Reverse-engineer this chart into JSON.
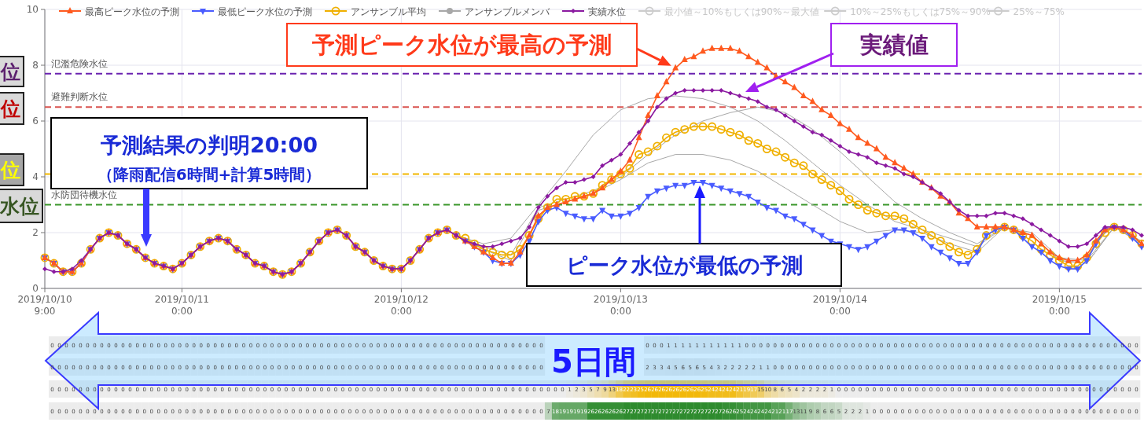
{
  "chart_data": [
    {
      "type": "line",
      "legend": "top",
      "grid": true,
      "x": [
        "2019-10-10T09:00",
        "2019-10-10T10:00",
        "2019-10-10T11:00",
        "2019-10-10T12:00",
        "2019-10-10T13:00",
        "2019-10-10T14:00",
        "2019-10-10T15:00",
        "2019-10-10T16:00",
        "2019-10-10T17:00",
        "2019-10-10T18:00",
        "2019-10-10T19:00",
        "2019-10-10T20:00",
        "2019-10-10T21:00",
        "2019-10-10T22:00",
        "2019-10-10T23:00",
        "2019-10-11T00:00",
        "2019-10-11T01:00",
        "2019-10-11T02:00",
        "2019-10-11T03:00",
        "2019-10-11T04:00",
        "2019-10-11T05:00",
        "2019-10-11T06:00",
        "2019-10-11T07:00",
        "2019-10-11T08:00",
        "2019-10-11T09:00",
        "2019-10-11T10:00",
        "2019-10-11T11:00",
        "2019-10-11T12:00",
        "2019-10-11T13:00",
        "2019-10-11T14:00",
        "2019-10-11T15:00",
        "2019-10-11T16:00",
        "2019-10-11T17:00",
        "2019-10-11T18:00",
        "2019-10-11T19:00",
        "2019-10-11T20:00",
        "2019-10-11T21:00",
        "2019-10-11T22:00",
        "2019-10-11T23:00",
        "2019-10-12T00:00",
        "2019-10-12T01:00",
        "2019-10-12T02:00",
        "2019-10-12T03:00",
        "2019-10-12T04:00",
        "2019-10-12T05:00",
        "2019-10-12T06:00",
        "2019-10-12T07:00",
        "2019-10-12T08:00",
        "2019-10-12T09:00",
        "2019-10-12T10:00",
        "2019-10-12T11:00",
        "2019-10-12T12:00",
        "2019-10-12T13:00",
        "2019-10-12T14:00",
        "2019-10-12T15:00",
        "2019-10-12T16:00",
        "2019-10-12T17:00",
        "2019-10-12T18:00",
        "2019-10-12T19:00",
        "2019-10-12T20:00",
        "2019-10-12T21:00",
        "2019-10-12T22:00",
        "2019-10-12T23:00",
        "2019-10-13T00:00",
        "2019-10-13T01:00",
        "2019-10-13T02:00",
        "2019-10-13T03:00",
        "2019-10-13T04:00",
        "2019-10-13T05:00",
        "2019-10-13T06:00",
        "2019-10-13T07:00",
        "2019-10-13T08:00",
        "2019-10-13T09:00",
        "2019-10-13T10:00",
        "2019-10-13T11:00",
        "2019-10-13T12:00",
        "2019-10-13T13:00",
        "2019-10-13T14:00",
        "2019-10-13T15:00",
        "2019-10-13T16:00",
        "2019-10-13T17:00",
        "2019-10-13T18:00",
        "2019-10-13T19:00",
        "2019-10-13T20:00",
        "2019-10-13T21:00",
        "2019-10-13T22:00",
        "2019-10-13T23:00",
        "2019-10-14T00:00",
        "2019-10-14T01:00",
        "2019-10-14T02:00",
        "2019-10-14T03:00",
        "2019-10-14T04:00",
        "2019-10-14T05:00",
        "2019-10-14T06:00",
        "2019-10-14T07:00",
        "2019-10-14T08:00",
        "2019-10-14T09:00",
        "2019-10-14T10:00",
        "2019-10-14T11:00",
        "2019-10-14T12:00",
        "2019-10-14T13:00",
        "2019-10-14T14:00",
        "2019-10-14T15:00",
        "2019-10-14T16:00",
        "2019-10-14T17:00",
        "2019-10-14T18:00",
        "2019-10-14T19:00",
        "2019-10-14T20:00",
        "2019-10-14T21:00",
        "2019-10-14T22:00",
        "2019-10-14T23:00",
        "2019-10-15T00:00",
        "2019-10-15T01:00",
        "2019-10-15T02:00",
        "2019-10-15T03:00",
        "2019-10-15T04:00",
        "2019-10-15T05:00",
        "2019-10-15T06:00",
        "2019-10-15T07:00",
        "2019-10-15T08:00",
        "2019-10-15T09:00"
      ],
      "xlim": [
        "2019-10-10T09:00",
        "2019-10-15T09:00"
      ],
      "ylim": [
        0,
        10
      ],
      "xticks": [
        {
          "value": "2019-10-10T09:00",
          "label": "2019/10/10 9:00"
        },
        {
          "value": "2019-10-11T00:00",
          "label": "2019/10/11 0:00"
        },
        {
          "value": "2019-10-12T00:00",
          "label": "2019/10/12 0:00"
        },
        {
          "value": "2019-10-13T00:00",
          "label": "2019/10/13 0:00"
        },
        {
          "value": "2019-10-14T00:00",
          "label": "2019/10/14 0:00"
        },
        {
          "value": "2019-10-15T00:00",
          "label": "2019/10/15 0:00"
        }
      ],
      "yticks": [
        0,
        2,
        4,
        6,
        8,
        10
      ],
      "ref_lines": [
        {
          "axis": "y",
          "value": 7.7,
          "label": "氾濫危険水位",
          "color": "#6a22b0",
          "line_style": "dashed"
        },
        {
          "axis": "y",
          "value": 6.5,
          "label": "避難判断水位",
          "color": "#d9534f",
          "line_style": "dashed"
        },
        {
          "axis": "y",
          "value": 4.1,
          "label": null,
          "color": "#f2b600",
          "line_style": "dashed"
        },
        {
          "axis": "y",
          "value": 3.0,
          "label": "水防団待機水位",
          "color": "#3a962a",
          "line_style": "dashed"
        }
      ],
      "series": [
        {
          "name": "最高ピーク水位の予測",
          "color": "#ff5a1f",
          "marker": "triangle",
          "values": [
            1.1,
            0.9,
            0.6,
            0.6,
            0.9,
            1.4,
            1.8,
            2.0,
            1.9,
            1.6,
            1.4,
            1.1,
            0.9,
            0.8,
            0.7,
            0.9,
            1.2,
            1.5,
            1.7,
            1.8,
            1.7,
            1.4,
            1.2,
            0.9,
            0.8,
            0.6,
            0.5,
            0.6,
            0.9,
            1.3,
            1.7,
            2.0,
            2.1,
            1.9,
            1.5,
            1.3,
            1.0,
            0.8,
            0.7,
            0.7,
            1.0,
            1.4,
            1.8,
            2.0,
            2.1,
            1.9,
            1.7,
            1.5,
            1.3,
            1.1,
            0.9,
            0.9,
            1.3,
            1.9,
            2.6,
            2.9,
            3.0,
            3.1,
            3.2,
            3.3,
            3.4,
            3.6,
            3.9,
            4.2,
            4.6,
            5.4,
            6.2,
            6.9,
            7.4,
            7.9,
            8.2,
            8.3,
            8.5,
            8.6,
            8.6,
            8.6,
            8.5,
            8.3,
            8.1,
            7.9,
            7.6,
            7.4,
            7.2,
            6.9,
            6.7,
            6.4,
            6.2,
            5.9,
            5.7,
            5.4,
            5.2,
            5.0,
            4.7,
            4.5,
            4.3,
            4.1,
            3.8,
            3.6,
            3.3,
            3.1,
            2.7,
            2.5,
            2.2,
            2.2,
            2.2,
            2.2,
            2.1,
            2.0,
            1.9,
            1.6,
            1.3,
            1.1,
            1.0,
            1.0,
            1.2,
            1.7,
            2.1,
            2.2,
            2.1,
            1.9,
            1.6
          ]
        },
        {
          "name": "最低ピーク水位の予測",
          "color": "#4a5cff",
          "marker": "triangle-down",
          "values": [
            1.1,
            0.9,
            0.6,
            0.6,
            0.9,
            1.4,
            1.8,
            2.0,
            1.9,
            1.6,
            1.4,
            1.1,
            0.9,
            0.8,
            0.7,
            0.9,
            1.2,
            1.5,
            1.7,
            1.8,
            1.7,
            1.4,
            1.2,
            0.9,
            0.8,
            0.6,
            0.5,
            0.6,
            0.9,
            1.3,
            1.7,
            2.0,
            2.1,
            1.9,
            1.5,
            1.3,
            1.0,
            0.8,
            0.7,
            0.7,
            1.0,
            1.4,
            1.8,
            2.0,
            2.1,
            1.9,
            1.7,
            1.5,
            1.3,
            1.0,
            0.9,
            0.9,
            1.2,
            1.7,
            2.4,
            2.8,
            2.9,
            2.7,
            2.6,
            2.5,
            2.5,
            2.8,
            2.6,
            2.6,
            2.7,
            2.9,
            3.3,
            3.5,
            3.6,
            3.7,
            3.7,
            3.8,
            3.8,
            3.7,
            3.6,
            3.5,
            3.4,
            3.3,
            3.1,
            2.9,
            2.8,
            2.6,
            2.5,
            2.3,
            2.1,
            1.9,
            1.7,
            1.6,
            1.5,
            1.4,
            1.5,
            1.7,
            1.9,
            2.1,
            2.1,
            2.0,
            1.8,
            1.5,
            1.3,
            1.1,
            0.9,
            0.9,
            1.3,
            1.9,
            2.1,
            2.2,
            2.1,
            1.8,
            1.5,
            1.3,
            1.0,
            0.8,
            0.7,
            0.7,
            1.0,
            1.6,
            2.1,
            2.2,
            2.1,
            1.8,
            1.5
          ]
        },
        {
          "name": "アンサンブル平均",
          "color": "#f0b000",
          "marker": "circle",
          "values": [
            1.1,
            0.9,
            0.6,
            0.6,
            0.9,
            1.4,
            1.8,
            2.0,
            1.9,
            1.6,
            1.4,
            1.1,
            0.9,
            0.8,
            0.7,
            0.9,
            1.2,
            1.5,
            1.7,
            1.8,
            1.7,
            1.4,
            1.2,
            0.9,
            0.8,
            0.6,
            0.5,
            0.6,
            0.9,
            1.3,
            1.7,
            2.0,
            2.1,
            1.9,
            1.5,
            1.3,
            1.0,
            0.8,
            0.7,
            0.7,
            1.0,
            1.4,
            1.8,
            2.0,
            2.1,
            1.9,
            1.8,
            1.6,
            1.4,
            1.3,
            1.2,
            1.2,
            1.4,
            1.9,
            2.5,
            2.9,
            3.2,
            3.2,
            3.3,
            3.3,
            3.4,
            3.7,
            3.9,
            4.1,
            4.3,
            4.8,
            4.9,
            5.1,
            5.4,
            5.6,
            5.7,
            5.8,
            5.8,
            5.8,
            5.7,
            5.6,
            5.5,
            5.3,
            5.2,
            5.0,
            4.9,
            4.7,
            4.5,
            4.4,
            4.1,
            3.9,
            3.7,
            3.5,
            3.2,
            3.0,
            2.8,
            2.7,
            2.6,
            2.6,
            2.5,
            2.3,
            2.1,
            1.9,
            1.7,
            1.5,
            1.3,
            1.2,
            1.4,
            1.9,
            2.1,
            2.2,
            2.1,
            1.9,
            1.7,
            1.4,
            1.2,
            1.0,
            0.8,
            0.8,
            1.1,
            1.6,
            2.0,
            2.2,
            2.1,
            1.9,
            1.6
          ]
        },
        {
          "name": "アンサンブルメンバ",
          "color": "#a8a8a8",
          "marker": "none",
          "x": [
            "2019-10-12T06:00",
            "2019-10-12T09:00",
            "2019-10-12T12:00",
            "2019-10-12T15:00",
            "2019-10-12T18:00",
            "2019-10-12T21:00",
            "2019-10-13T00:00",
            "2019-10-13T03:00",
            "2019-10-13T06:00",
            "2019-10-13T09:00",
            "2019-10-13T12:00",
            "2019-10-13T15:00",
            "2019-10-13T18:00",
            "2019-10-13T21:00",
            "2019-10-14T00:00",
            "2019-10-14T03:00",
            "2019-10-14T06:00",
            "2019-10-14T09:00",
            "2019-10-14T12:00",
            "2019-10-14T15:00",
            "2019-10-14T18:00",
            "2019-10-14T21:00",
            "2019-10-15T00:00",
            "2019-10-15T03:00",
            "2019-10-15T06:00",
            "2019-10-15T09:00"
          ],
          "values": [
            1.9,
            1.6,
            1.8,
            3.0,
            4.2,
            5.5,
            6.4,
            6.8,
            6.9,
            6.8,
            6.5,
            6.0,
            5.3,
            4.5,
            3.7,
            3.0,
            2.4,
            2.1,
            1.8,
            1.5,
            2.2,
            2.0,
            1.1,
            1.0,
            2.2,
            1.7
          ]
        },
        {
          "color": "#a8a8a8",
          "marker": "none",
          "x": [
            "2019-10-12T06:00",
            "2019-10-12T09:00",
            "2019-10-12T12:00",
            "2019-10-12T15:00",
            "2019-10-12T18:00",
            "2019-10-12T21:00",
            "2019-10-13T00:00",
            "2019-10-13T03:00",
            "2019-10-13T06:00",
            "2019-10-13T09:00",
            "2019-10-13T12:00",
            "2019-10-13T15:00",
            "2019-10-13T18:00",
            "2019-10-13T21:00",
            "2019-10-14T00:00",
            "2019-10-14T03:00",
            "2019-10-14T06:00",
            "2019-10-14T09:00",
            "2019-10-14T12:00",
            "2019-10-14T15:00",
            "2019-10-14T18:00",
            "2019-10-14T21:00",
            "2019-10-15T00:00",
            "2019-10-15T03:00",
            "2019-10-15T06:00",
            "2019-10-15T09:00"
          ],
          "values": [
            1.9,
            1.4,
            1.0,
            2.8,
            3.1,
            3.4,
            3.9,
            4.5,
            4.8,
            4.8,
            4.6,
            4.2,
            3.6,
            3.0,
            2.4,
            2.0,
            2.1,
            2.0,
            1.6,
            1.3,
            2.2,
            1.9,
            1.0,
            0.9,
            2.2,
            1.6
          ]
        },
        {
          "color": "#a8a8a8",
          "marker": "none",
          "x": [
            "2019-10-12T06:00",
            "2019-10-12T09:00",
            "2019-10-12T12:00",
            "2019-10-12T15:00",
            "2019-10-12T18:00",
            "2019-10-12T21:00",
            "2019-10-13T00:00",
            "2019-10-13T03:00",
            "2019-10-13T06:00",
            "2019-10-13T09:00",
            "2019-10-13T12:00",
            "2019-10-13T15:00",
            "2019-10-13T18:00",
            "2019-10-13T21:00",
            "2019-10-14T00:00",
            "2019-10-14T03:00",
            "2019-10-14T06:00",
            "2019-10-14T09:00",
            "2019-10-14T12:00",
            "2019-10-14T15:00",
            "2019-10-14T18:00",
            "2019-10-14T21:00",
            "2019-10-15T00:00",
            "2019-10-15T03:00",
            "2019-10-15T06:00",
            "2019-10-15T09:00"
          ],
          "values": [
            1.9,
            1.5,
            1.2,
            2.9,
            3.2,
            3.5,
            4.0,
            4.8,
            5.5,
            6.0,
            6.3,
            6.5,
            6.3,
            5.7,
            4.9,
            4.0,
            3.1,
            2.5,
            2.0,
            1.6,
            2.2,
            1.9,
            1.0,
            0.9,
            2.2,
            1.6
          ]
        },
        {
          "name": "実績水位",
          "color": "#8b1aa0",
          "marker": "diamond",
          "values": [
            0.7,
            0.6,
            0.6,
            0.7,
            1.0,
            1.4,
            1.8,
            2.0,
            1.9,
            1.6,
            1.4,
            1.1,
            0.9,
            0.8,
            0.7,
            0.9,
            1.2,
            1.5,
            1.7,
            1.8,
            1.7,
            1.4,
            1.2,
            0.9,
            0.8,
            0.6,
            0.5,
            0.6,
            0.9,
            1.3,
            1.7,
            2.0,
            2.1,
            1.9,
            1.5,
            1.3,
            1.0,
            0.8,
            0.7,
            0.7,
            1.0,
            1.4,
            1.8,
            2.0,
            2.1,
            1.9,
            1.7,
            1.6,
            1.5,
            1.5,
            1.6,
            1.7,
            1.8,
            2.2,
            2.9,
            3.3,
            3.6,
            3.8,
            3.8,
            3.9,
            4.0,
            4.4,
            4.6,
            4.8,
            5.2,
            5.6,
            6.0,
            6.5,
            6.8,
            7.0,
            7.1,
            7.1,
            7.1,
            7.1,
            7.1,
            7.0,
            6.9,
            6.8,
            6.7,
            6.5,
            6.4,
            6.2,
            6.0,
            5.8,
            5.6,
            5.5,
            5.3,
            5.1,
            4.9,
            4.8,
            4.7,
            4.5,
            4.4,
            4.3,
            4.1,
            4.0,
            3.8,
            3.6,
            3.4,
            3.1,
            2.8,
            2.6,
            2.6,
            2.6,
            2.7,
            2.7,
            2.6,
            2.5,
            2.3,
            2.1,
            1.9,
            1.7,
            1.5,
            1.5,
            1.6,
            1.9,
            2.2,
            2.2,
            2.2,
            2.1,
            1.9
          ]
        },
        {
          "name": "最小値～10%もしくは90%～最大値",
          "color": "#cccccc",
          "marker": "circle",
          "values": [
            null,
            null,
            null,
            null,
            null,
            null,
            null,
            null,
            null,
            null,
            null,
            null,
            null,
            null,
            null,
            null,
            null,
            null,
            null,
            null,
            null,
            null,
            null,
            null,
            null,
            null,
            null,
            null,
            null,
            null,
            null,
            null,
            null,
            null,
            null,
            null,
            null,
            null,
            null,
            null,
            null,
            null,
            null,
            null,
            null,
            null,
            null,
            null,
            null,
            null,
            null,
            null,
            null,
            null,
            null,
            null,
            null,
            null,
            null,
            null,
            null,
            null,
            null,
            null,
            null,
            null,
            null,
            null,
            null,
            null,
            null,
            null,
            null,
            null,
            null,
            null,
            null,
            null,
            null,
            null,
            null,
            null,
            null,
            null,
            null,
            null,
            null,
            null,
            null,
            null,
            null,
            null,
            null,
            null,
            null,
            null,
            null,
            null,
            null,
            null,
            null,
            null,
            null,
            null,
            null,
            null,
            null,
            null,
            null,
            null,
            null,
            null,
            null,
            null,
            null,
            null,
            null,
            null,
            null,
            null,
            null
          ]
        },
        {
          "name": "10%～25%もしくは75%～90%",
          "color": "#cccccc",
          "marker": "circle",
          "values": [
            null,
            null,
            null,
            null,
            null,
            null,
            null,
            null,
            null,
            null,
            null,
            null,
            null,
            null,
            null,
            null,
            null,
            null,
            null,
            null,
            null,
            null,
            null,
            null,
            null,
            null,
            null,
            null,
            null,
            null,
            null,
            null,
            null,
            null,
            null,
            null,
            null,
            null,
            null,
            null,
            null,
            null,
            null,
            null,
            null,
            null,
            null,
            null,
            null,
            null,
            null,
            null,
            null,
            null,
            null,
            null,
            null,
            null,
            null,
            null,
            null,
            null,
            null,
            null,
            null,
            null,
            null,
            null,
            null,
            null,
            null,
            null,
            null,
            null,
            null,
            null,
            null,
            null,
            null,
            null,
            null,
            null,
            null,
            null,
            null,
            null,
            null,
            null,
            null,
            null,
            null,
            null,
            null,
            null,
            null,
            null,
            null,
            null,
            null,
            null,
            null,
            null,
            null,
            null,
            null,
            null,
            null,
            null,
            null,
            null,
            null,
            null,
            null,
            null,
            null,
            null,
            null,
            null,
            null,
            null,
            null
          ]
        },
        {
          "name": "25%～75%",
          "color": "#cccccc",
          "marker": "circle",
          "values": [
            null,
            null,
            null,
            null,
            null,
            null,
            null,
            null,
            null,
            null,
            null,
            null,
            null,
            null,
            null,
            null,
            null,
            null,
            null,
            null,
            null,
            null,
            null,
            null,
            null,
            null,
            null,
            null,
            null,
            null,
            null,
            null,
            null,
            null,
            null,
            null,
            null,
            null,
            null,
            null,
            null,
            null,
            null,
            null,
            null,
            null,
            null,
            null,
            null,
            null,
            null,
            null,
            null,
            null,
            null,
            null,
            null,
            null,
            null,
            null,
            null,
            null,
            null,
            null,
            null,
            null,
            null,
            null,
            null,
            null,
            null,
            null,
            null,
            null,
            null,
            null,
            null,
            null,
            null,
            null,
            null,
            null,
            null,
            null,
            null,
            null,
            null,
            null,
            null,
            null,
            null,
            null,
            null,
            null,
            null,
            null,
            null,
            null,
            null,
            null,
            null,
            null,
            null,
            null,
            null,
            null,
            null,
            null,
            null,
            null,
            null,
            null,
            null,
            null,
            null,
            null,
            null,
            null,
            null,
            null,
            null
          ]
        }
      ],
      "annotations": [
        {
          "text": "予測ピーク水位が最高の予測",
          "x": "2019-10-13T06:00",
          "y": 7.9
        },
        "実績値",
        "ピーク水位が最低の予測",
        "予測結果の判明20:00",
        "（降雨配信6時間+計算5時間）",
        "位",
        "位",
        "位",
        "水位"
      ]
    },
    {
      "type": "heatmap",
      "categories": [
        null,
        null,
        null,
        null,
        null,
        null,
        null,
        null,
        null,
        null,
        null,
        null,
        null,
        null,
        null,
        null,
        null,
        null,
        null,
        null,
        null,
        null,
        null,
        null,
        null,
        null,
        null,
        null,
        null,
        null,
        null,
        null,
        null,
        null,
        null,
        null,
        null,
        null,
        null,
        null,
        null,
        null,
        null,
        null,
        null,
        null,
        null,
        null,
        null,
        null,
        null,
        null,
        null,
        null,
        null,
        null,
        null,
        null,
        null,
        null,
        null,
        null,
        null,
        null,
        null,
        null,
        null,
        null,
        null,
        null,
        null,
        null,
        null,
        null,
        null,
        null,
        null,
        null,
        null,
        null,
        null,
        null,
        null,
        null,
        null,
        null,
        null,
        null,
        null,
        null,
        null,
        null,
        null,
        null,
        null,
        null,
        null,
        null,
        null,
        null,
        null,
        null,
        null,
        null,
        null,
        null,
        null,
        null,
        null,
        null,
        null,
        null,
        null,
        null,
        null,
        null,
        null,
        null,
        null,
        null,
        null,
        null,
        null,
        null,
        null,
        null,
        null,
        null,
        null,
        null,
        null,
        null,
        null,
        null,
        null,
        null,
        null,
        null,
        null,
        null,
        null,
        null,
        null,
        null,
        null,
        null,
        null,
        null,
        null,
        null,
        null,
        null,
        null,
        null
      ],
      "y_categories": [
        null,
        null,
        null,
        null
      ],
      "data_labels": true,
      "colors": [
        "#bdbdbd",
        "#bdbdbd",
        "#f2b600",
        "#2e8b2e"
      ],
      "cells": [
        [
          0,
          0,
          0,
          0,
          0,
          0,
          0,
          0,
          0,
          0,
          0,
          0,
          0,
          0,
          0,
          0,
          0,
          0,
          0,
          0,
          0,
          0,
          0,
          0,
          0,
          0,
          0,
          0,
          0,
          0,
          0,
          0,
          0,
          0,
          0,
          0,
          0,
          0,
          0,
          0,
          0,
          0,
          0,
          0,
          0,
          0,
          0,
          0,
          0,
          0,
          0,
          0,
          0,
          0,
          0,
          0,
          0,
          0,
          0,
          0,
          0,
          0,
          0,
          0,
          0,
          0,
          0,
          0,
          0,
          0,
          null,
          null,
          null,
          null,
          null,
          null,
          null,
          null,
          null,
          null,
          null,
          null,
          null,
          null,
          0,
          0,
          0,
          1,
          1,
          1,
          1,
          1,
          1,
          1,
          1,
          1,
          1,
          1,
          0,
          0,
          0,
          0,
          0,
          0,
          0,
          0,
          0,
          0,
          0,
          0,
          0,
          0,
          0,
          0,
          0,
          0,
          0,
          0,
          0,
          0,
          0,
          0,
          0,
          0,
          0,
          0,
          0,
          0,
          0,
          0,
          0,
          0,
          0,
          0,
          0,
          0,
          0,
          0,
          0,
          0,
          0,
          0,
          0,
          0,
          0,
          0,
          0,
          0,
          0,
          0,
          0,
          0,
          0,
          0
        ],
        [
          0,
          0,
          0,
          0,
          0,
          0,
          0,
          0,
          0,
          0,
          0,
          0,
          0,
          0,
          0,
          0,
          0,
          0,
          0,
          0,
          0,
          0,
          0,
          0,
          0,
          0,
          0,
          0,
          0,
          0,
          0,
          0,
          0,
          0,
          0,
          0,
          0,
          0,
          0,
          0,
          0,
          0,
          0,
          0,
          0,
          0,
          0,
          0,
          0,
          0,
          0,
          0,
          0,
          0,
          0,
          0,
          0,
          0,
          0,
          0,
          0,
          0,
          0,
          0,
          0,
          0,
          0,
          0,
          0,
          0,
          null,
          null,
          null,
          null,
          null,
          null,
          null,
          null,
          null,
          null,
          null,
          null,
          null,
          null,
          2,
          3,
          3,
          4,
          5,
          6,
          5,
          6,
          5,
          4,
          3,
          2,
          2,
          2,
          2,
          2,
          1,
          1,
          0,
          0,
          0,
          0,
          0,
          0,
          0,
          0,
          0,
          0,
          0,
          0,
          0,
          0,
          0,
          0,
          0,
          0,
          0,
          0,
          0,
          0,
          0,
          0,
          0,
          0,
          0,
          0,
          0,
          0,
          0,
          0,
          0,
          0,
          0,
          0,
          0,
          0,
          0,
          0,
          0,
          0,
          0,
          0,
          0,
          0,
          0,
          0,
          0,
          0,
          0,
          0
        ],
        [
          0,
          0,
          0,
          0,
          0,
          0,
          0,
          0,
          0,
          0,
          0,
          0,
          0,
          0,
          0,
          0,
          0,
          0,
          0,
          0,
          0,
          0,
          0,
          0,
          0,
          0,
          0,
          0,
          0,
          0,
          0,
          0,
          0,
          0,
          0,
          0,
          0,
          0,
          0,
          0,
          0,
          0,
          0,
          0,
          0,
          0,
          0,
          0,
          0,
          0,
          0,
          0,
          0,
          0,
          0,
          0,
          0,
          0,
          0,
          0,
          0,
          0,
          0,
          0,
          0,
          0,
          0,
          0,
          0,
          0,
          0,
          0,
          0,
          1,
          2,
          3,
          5,
          7,
          9,
          13,
          18,
          22,
          23,
          25,
          26,
          26,
          26,
          26,
          26,
          26,
          26,
          26,
          25,
          24,
          24,
          24,
          24,
          21,
          19,
          17,
          15,
          10,
          8,
          6,
          5,
          4,
          2,
          2,
          2,
          2,
          1,
          0,
          0,
          0,
          0,
          0,
          0,
          0,
          0,
          0,
          0,
          0,
          0,
          0,
          0,
          0,
          0,
          0,
          0,
          0,
          0,
          0,
          0,
          0,
          0,
          0,
          0,
          0,
          0,
          0,
          0,
          0,
          0,
          0,
          0,
          0,
          0,
          0,
          0,
          0,
          0,
          0,
          0,
          0
        ],
        [
          0,
          0,
          0,
          0,
          0,
          0,
          0,
          0,
          0,
          0,
          0,
          0,
          0,
          0,
          0,
          0,
          0,
          0,
          0,
          0,
          0,
          0,
          0,
          0,
          0,
          0,
          0,
          0,
          0,
          0,
          0,
          0,
          0,
          0,
          0,
          0,
          0,
          0,
          0,
          0,
          0,
          0,
          0,
          0,
          0,
          0,
          0,
          0,
          0,
          0,
          0,
          0,
          0,
          0,
          0,
          0,
          0,
          0,
          0,
          0,
          0,
          0,
          0,
          0,
          0,
          0,
          0,
          0,
          0,
          0,
          7,
          18,
          19,
          19,
          19,
          19,
          26,
          26,
          26,
          26,
          26,
          27,
          27,
          27,
          27,
          27,
          27,
          27,
          27,
          27,
          27,
          27,
          27,
          27,
          27,
          26,
          26,
          25,
          24,
          24,
          24,
          24,
          21,
          21,
          17,
          13,
          11,
          9,
          8,
          6,
          6,
          5,
          2,
          2,
          2,
          1,
          0,
          0,
          0,
          0,
          0,
          0,
          0,
          0,
          0,
          0,
          0,
          0,
          0,
          0,
          0,
          0,
          0,
          0,
          0,
          0,
          0,
          0,
          0,
          0,
          0,
          0,
          0,
          0,
          0,
          0,
          0,
          0,
          0,
          0,
          0,
          0,
          0,
          0
        ]
      ],
      "annotations": [
        "5日間"
      ]
    }
  ]
}
